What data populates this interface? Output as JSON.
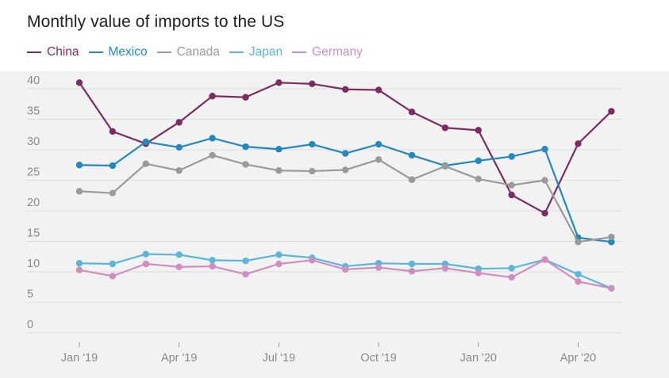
{
  "chart_data": {
    "type": "line",
    "title": "Monthly value of imports to the US",
    "xlabel": "",
    "ylabel": "",
    "ylim": [
      0,
      40
    ],
    "yticks": [
      "0",
      "5",
      "10",
      "15",
      "20",
      "25",
      "30",
      "35",
      "40"
    ],
    "x": [
      "Jan '19",
      "Feb '19",
      "Mar '19",
      "Apr '19",
      "May '19",
      "Jun '19",
      "Jul '19",
      "Aug '19",
      "Sep '19",
      "Oct '19",
      "Nov '19",
      "Dec '19",
      "Jan '20",
      "Feb '20",
      "Mar '20",
      "Apr '20",
      "May '20"
    ],
    "xtick_labels": [
      "Jan '19",
      "",
      "",
      "Apr '19",
      "",
      "",
      "Jul '19",
      "",
      "",
      "Oct '19",
      "",
      "",
      "Jan '20",
      "",
      "",
      "Apr '20",
      ""
    ],
    "grid": true,
    "legend_position": "top-left",
    "series": [
      {
        "name": "China",
        "color": "#7b2d62",
        "values": [
          41.0,
          33.0,
          31.0,
          34.5,
          38.8,
          38.6,
          41.0,
          40.8,
          39.9,
          39.8,
          36.2,
          33.6,
          33.2,
          22.6,
          19.6,
          31.0,
          36.3
        ]
      },
      {
        "name": "Mexico",
        "color": "#2387c0",
        "values": [
          27.5,
          27.4,
          31.3,
          30.4,
          31.9,
          30.5,
          30.1,
          30.9,
          29.4,
          30.9,
          29.1,
          27.4,
          28.2,
          28.9,
          30.1,
          15.6,
          14.9
        ]
      },
      {
        "name": "Canada",
        "color": "#9a9a9a",
        "values": [
          23.2,
          22.9,
          27.7,
          26.6,
          29.1,
          27.6,
          26.6,
          26.5,
          26.7,
          28.4,
          25.1,
          27.3,
          25.2,
          24.2,
          25.0,
          14.9,
          15.7
        ]
      },
      {
        "name": "Japan",
        "color": "#5bb6dc",
        "values": [
          11.4,
          11.3,
          12.9,
          12.8,
          11.9,
          11.8,
          12.8,
          12.3,
          10.9,
          11.4,
          11.3,
          11.3,
          10.5,
          10.6,
          12.0,
          9.6,
          7.3
        ]
      },
      {
        "name": "Germany",
        "color": "#cf8ec0",
        "values": [
          10.3,
          9.3,
          11.3,
          10.8,
          10.9,
          9.6,
          11.3,
          11.9,
          10.4,
          10.7,
          10.1,
          10.6,
          9.8,
          9.1,
          12.0,
          8.4,
          7.3
        ]
      }
    ]
  }
}
